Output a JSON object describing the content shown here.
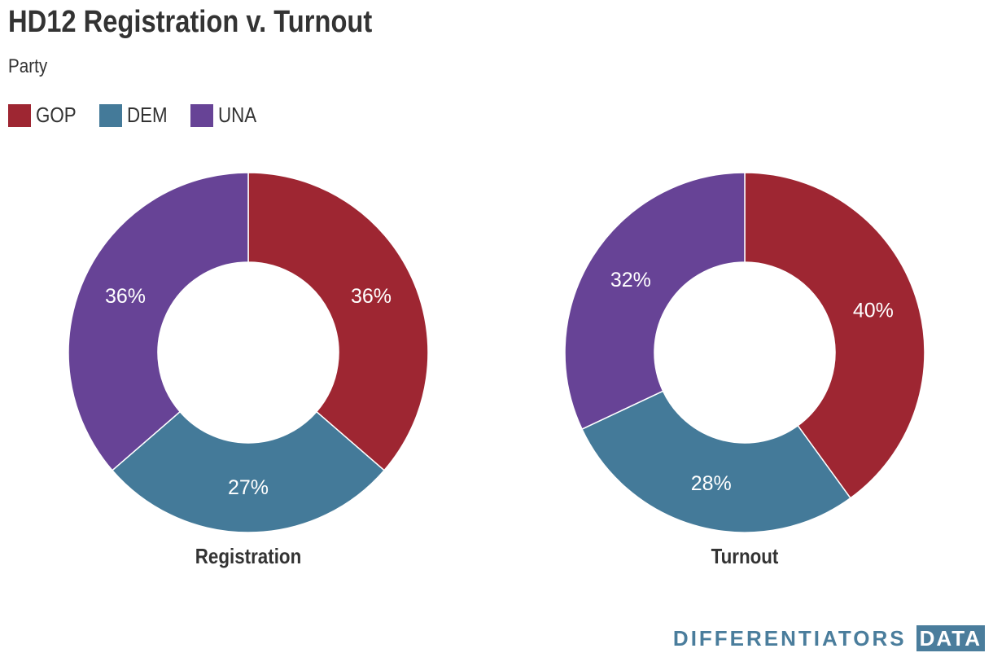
{
  "title": "HD12 Registration v. Turnout",
  "subtitle": "Party",
  "legend": [
    {
      "label": "GOP",
      "color": "#9e2632"
    },
    {
      "label": "DEM",
      "color": "#447a99"
    },
    {
      "label": "UNA",
      "color": "#674396"
    }
  ],
  "chart_data": [
    {
      "type": "pie",
      "variant": "donut",
      "title": "Registration",
      "categories": [
        "GOP",
        "DEM",
        "UNA"
      ],
      "values": [
        36,
        27,
        36
      ],
      "labels": [
        "36%",
        "27%",
        "36%"
      ],
      "colors": [
        "#9e2632",
        "#447a99",
        "#674396"
      ]
    },
    {
      "type": "pie",
      "variant": "donut",
      "title": "Turnout",
      "categories": [
        "GOP",
        "DEM",
        "UNA"
      ],
      "values": [
        40,
        28,
        32
      ],
      "labels": [
        "40%",
        "28%",
        "32%"
      ],
      "colors": [
        "#9e2632",
        "#447a99",
        "#674396"
      ]
    }
  ],
  "brand": {
    "word": "DIFFERENTIATORS",
    "box": "DATA"
  }
}
